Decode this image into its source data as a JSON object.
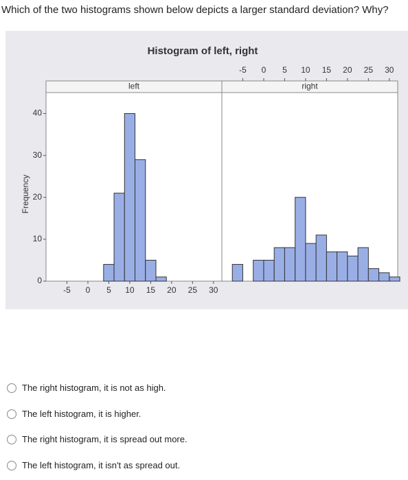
{
  "question": "Which of the two histograms shown below depicts a larger standard deviation? Why?",
  "chart_data": {
    "type": "histogram",
    "title": "Histogram of left, right",
    "ylabel": "Frequency",
    "color": "#9aaee6",
    "xlim": [
      -10,
      32
    ],
    "xticks": [
      -5,
      0,
      5,
      10,
      15,
      20,
      25,
      30
    ],
    "ylim": [
      0,
      45
    ],
    "yticks": [
      0,
      10,
      20,
      30,
      40
    ],
    "panels": [
      {
        "name": "left",
        "bins": [
          3.75,
          6.25,
          8.75,
          11.25,
          13.75,
          16.25,
          18.75
        ],
        "values": [
          4,
          21,
          40,
          29,
          5,
          1
        ]
      },
      {
        "name": "right",
        "bins": [
          -7.5,
          -5,
          -2.5,
          0,
          2.5,
          5,
          7.5,
          10,
          12.5,
          15,
          17.5,
          20,
          22.5,
          25,
          27.5,
          30,
          32.5
        ],
        "values": [
          4,
          0,
          5,
          5,
          8,
          8,
          20,
          9,
          11,
          7,
          7,
          6,
          8,
          3,
          2,
          1
        ]
      }
    ]
  },
  "options": [
    "The right histogram, it is not as high.",
    "The left histogram, it is higher.",
    "The right histogram, it is spread out more.",
    "The left histogram, it isn't as spread out."
  ]
}
